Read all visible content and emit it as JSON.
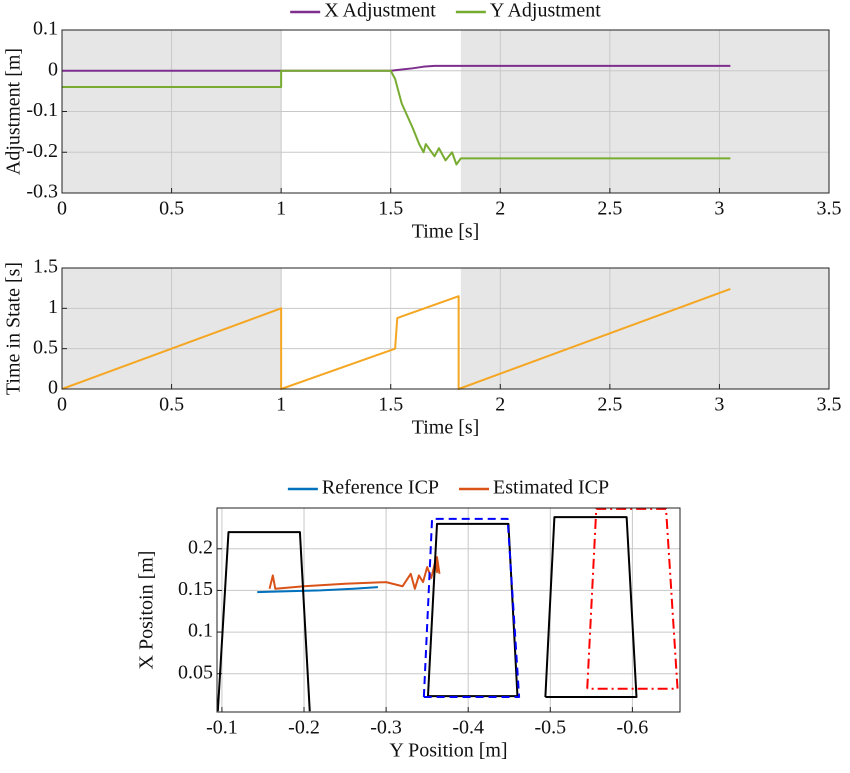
{
  "chart_data": [
    {
      "type": "line",
      "xlabel": "Time [s]",
      "ylabel": "Adjustment [m]",
      "xlim": [
        0,
        3.5
      ],
      "xticks": [
        0,
        0.5,
        1,
        1.5,
        2,
        2.5,
        3,
        3.5
      ],
      "ylim": [
        -0.3,
        0.1
      ],
      "yticks": [
        -0.3,
        -0.2,
        -0.1,
        0,
        0.1
      ],
      "grid": true,
      "shaded_regions": [
        [
          0,
          1
        ],
        [
          1.82,
          3.5
        ]
      ],
      "shade_color": "#e6e6e6",
      "series": [
        {
          "name": "X Adjustment",
          "color": "#7e2f8e",
          "x": [
            0,
            1.5,
            1.55,
            1.6,
            1.65,
            1.7,
            1.8,
            3.05
          ],
          "values": [
            0,
            0,
            0.003,
            0.006,
            0.01,
            0.012,
            0.012,
            0.012
          ]
        },
        {
          "name": "Y Adjustment",
          "color": "#77ac30",
          "x": [
            0,
            1,
            1,
            1.5,
            1.52,
            1.55,
            1.6,
            1.63,
            1.65,
            1.66,
            1.7,
            1.72,
            1.75,
            1.78,
            1.8,
            1.82,
            3.05
          ],
          "values": [
            -0.04,
            -0.04,
            0,
            0,
            -0.02,
            -0.08,
            -0.14,
            -0.18,
            -0.2,
            -0.18,
            -0.21,
            -0.19,
            -0.22,
            -0.2,
            -0.23,
            -0.215,
            -0.215
          ]
        }
      ]
    },
    {
      "type": "line",
      "xlabel": "Time [s]",
      "ylabel": "Time in State [s]",
      "xlim": [
        0,
        3.5
      ],
      "xticks": [
        0,
        0.5,
        1,
        1.5,
        2,
        2.5,
        3,
        3.5
      ],
      "ylim": [
        0,
        1.5
      ],
      "yticks": [
        0,
        0.5,
        1,
        1.5
      ],
      "grid": true,
      "shaded_regions": [
        [
          0,
          1
        ],
        [
          1.82,
          3.5
        ]
      ],
      "shade_color": "#e6e6e6",
      "series": [
        {
          "color": "#f5a623",
          "x": [
            0,
            1,
            1,
            1.52,
            1.53,
            1.55,
            1.81,
            1.81,
            3.05
          ],
          "values": [
            0,
            1,
            0,
            0.5,
            0.88,
            0.9,
            1.15,
            0,
            1.24
          ]
        }
      ]
    },
    {
      "type": "line",
      "xlabel": "Y Position [m]",
      "ylabel": "X Positoin [m]",
      "xlim": [
        -0.094,
        -0.658
      ],
      "xticks": [
        -0.1,
        -0.2,
        -0.3,
        -0.4,
        -0.5,
        -0.6
      ],
      "ylim": [
        0.004,
        0.249
      ],
      "yticks": [
        0.05,
        0.1,
        0.15,
        0.2
      ],
      "grid": true,
      "series": [
        {
          "name": "Reference ICP",
          "color": "#0072bd",
          "x": [
            -0.143,
            -0.18,
            -0.22,
            -0.26,
            -0.29
          ],
          "values": [
            0.148,
            0.149,
            0.15,
            0.152,
            0.154
          ]
        },
        {
          "name": "Estimated ICP",
          "color": "#d95319",
          "x": [
            -0.158,
            -0.162,
            -0.165,
            -0.2,
            -0.25,
            -0.3,
            -0.32,
            -0.33,
            -0.335,
            -0.34,
            -0.345,
            -0.35,
            -0.355,
            -0.36,
            -0.362,
            -0.362,
            -0.365
          ],
          "values": [
            0.152,
            0.168,
            0.152,
            0.155,
            0.158,
            0.16,
            0.155,
            0.17,
            0.152,
            0.168,
            0.16,
            0.178,
            0.165,
            0.185,
            0.172,
            0.19,
            0.17
          ]
        },
        {
          "color": "#000000",
          "x": [
            -0.095,
            -0.108,
            -0.195,
            -0.207
          ],
          "values": [
            0.005,
            0.22,
            0.22,
            0.005
          ]
        },
        {
          "color": "#000000",
          "x": [
            -0.351,
            -0.362,
            -0.449,
            -0.46,
            -0.351
          ],
          "values": [
            0.023,
            0.23,
            0.23,
            0.023,
            0.023
          ]
        },
        {
          "color": "#0000ff",
          "dash": "8 5",
          "x": [
            -0.346,
            -0.356,
            -0.448,
            -0.462,
            -0.346
          ],
          "values": [
            0.022,
            0.236,
            0.236,
            0.022,
            0.022
          ]
        },
        {
          "color": "#000000",
          "x": [
            -0.494,
            -0.505,
            -0.593,
            -0.605,
            -0.494
          ],
          "values": [
            0.022,
            0.238,
            0.238,
            0.022,
            0.022
          ]
        },
        {
          "color": "#ff0000",
          "dash": "10 4 2 4",
          "x": [
            -0.545,
            -0.556,
            -0.641,
            -0.655,
            -0.545
          ],
          "values": [
            0.032,
            0.248,
            0.248,
            0.032,
            0.032
          ]
        }
      ]
    }
  ]
}
